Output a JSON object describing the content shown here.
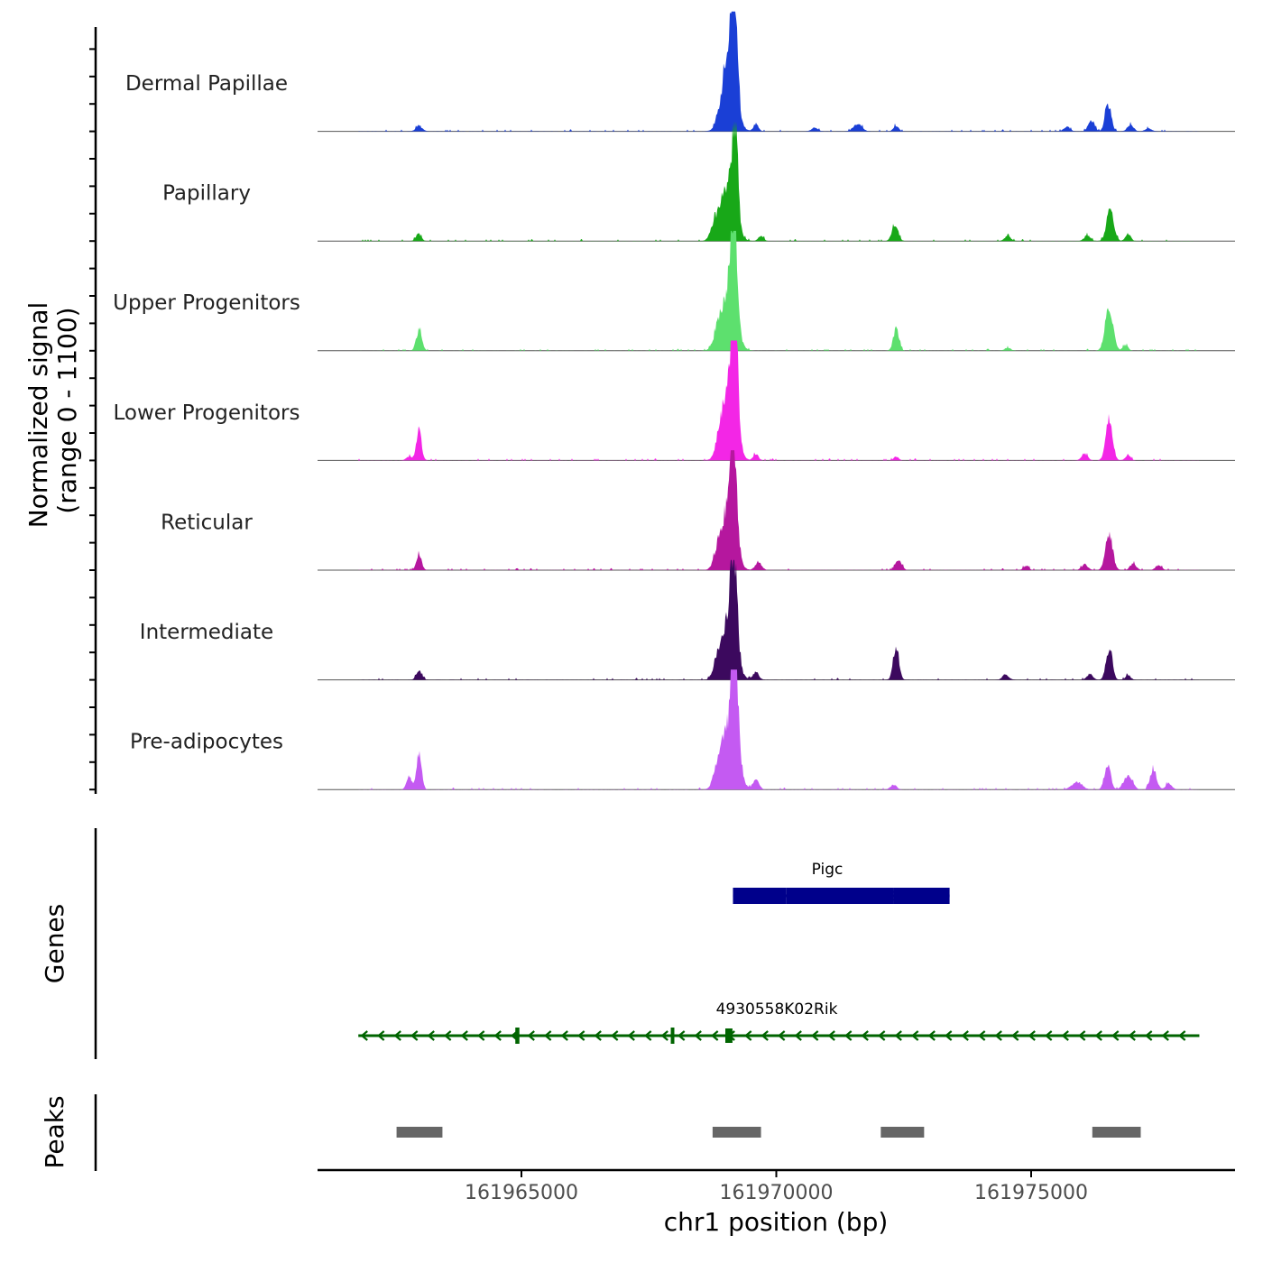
{
  "chart_data": {
    "type": "area",
    "title": "",
    "xlabel": "chr1 position (bp)",
    "ylabel_line1": "Normalized signal",
    "ylabel_line2": "(range 0 - 1100)",
    "y_range": [
      0,
      1100
    ],
    "xlim": [
      161961000,
      161979000
    ],
    "x_ticks": [
      {
        "value": 161965000,
        "label": "161965000"
      },
      {
        "value": 161970000,
        "label": "161970000"
      },
      {
        "value": 161975000,
        "label": "161975000"
      }
    ],
    "track_labels": {
      "genes": "Genes",
      "peaks": "Peaks"
    },
    "series": [
      {
        "name": "Dermal Papillae",
        "color": "#1a3fd6",
        "peaks": [
          {
            "center": 161962990,
            "height": 60,
            "width": 60
          },
          {
            "center": 161969070,
            "height": 820,
            "width": 130
          },
          {
            "center": 161969180,
            "height": 1000,
            "width": 55
          },
          {
            "center": 161969600,
            "height": 80,
            "width": 50
          },
          {
            "center": 161970750,
            "height": 40,
            "width": 60
          },
          {
            "center": 161971540,
            "height": 50,
            "width": 60
          },
          {
            "center": 161971650,
            "height": 55,
            "width": 60
          },
          {
            "center": 161972350,
            "height": 60,
            "width": 50
          },
          {
            "center": 161975700,
            "height": 50,
            "width": 60
          },
          {
            "center": 161976180,
            "height": 120,
            "width": 60
          },
          {
            "center": 161976510,
            "height": 290,
            "width": 60
          },
          {
            "center": 161976950,
            "height": 70,
            "width": 60
          },
          {
            "center": 161977300,
            "height": 30,
            "width": 60
          }
        ]
      },
      {
        "name": "Papillary",
        "color": "#18a818",
        "peaks": [
          {
            "center": 161962980,
            "height": 80,
            "width": 50
          },
          {
            "center": 161968800,
            "height": 150,
            "width": 80
          },
          {
            "center": 161969050,
            "height": 560,
            "width": 140
          },
          {
            "center": 161969190,
            "height": 980,
            "width": 55
          },
          {
            "center": 161969700,
            "height": 60,
            "width": 50
          },
          {
            "center": 161972330,
            "height": 170,
            "width": 60
          },
          {
            "center": 161974540,
            "height": 50,
            "width": 60
          },
          {
            "center": 161976100,
            "height": 60,
            "width": 60
          },
          {
            "center": 161976550,
            "height": 330,
            "width": 70
          },
          {
            "center": 161976900,
            "height": 80,
            "width": 50
          }
        ]
      },
      {
        "name": "Upper Progenitors",
        "color": "#5de06e",
        "peaks": [
          {
            "center": 161962990,
            "height": 220,
            "width": 55
          },
          {
            "center": 161968850,
            "height": 130,
            "width": 80
          },
          {
            "center": 161969060,
            "height": 600,
            "width": 140
          },
          {
            "center": 161969170,
            "height": 1000,
            "width": 60
          },
          {
            "center": 161972350,
            "height": 230,
            "width": 55
          },
          {
            "center": 161974540,
            "height": 30,
            "width": 60
          },
          {
            "center": 161976530,
            "height": 480,
            "width": 75
          },
          {
            "center": 161976850,
            "height": 60,
            "width": 50
          }
        ]
      },
      {
        "name": "Lower Progenitors",
        "color": "#f326e6",
        "peaks": [
          {
            "center": 161962990,
            "height": 320,
            "width": 50
          },
          {
            "center": 161962800,
            "height": 40,
            "width": 60
          },
          {
            "center": 161968900,
            "height": 200,
            "width": 80
          },
          {
            "center": 161969080,
            "height": 700,
            "width": 130
          },
          {
            "center": 161969180,
            "height": 1300,
            "width": 60
          },
          {
            "center": 161969600,
            "height": 70,
            "width": 50
          },
          {
            "center": 161972350,
            "height": 40,
            "width": 50
          },
          {
            "center": 161976050,
            "height": 70,
            "width": 60
          },
          {
            "center": 161976530,
            "height": 480,
            "width": 65
          },
          {
            "center": 161976900,
            "height": 60,
            "width": 50
          }
        ]
      },
      {
        "name": "Reticular",
        "color": "#b5179e",
        "peaks": [
          {
            "center": 161962990,
            "height": 180,
            "width": 50
          },
          {
            "center": 161968850,
            "height": 160,
            "width": 80
          },
          {
            "center": 161969070,
            "height": 650,
            "width": 130
          },
          {
            "center": 161969160,
            "height": 1050,
            "width": 60
          },
          {
            "center": 161969650,
            "height": 90,
            "width": 60
          },
          {
            "center": 161972400,
            "height": 110,
            "width": 60
          },
          {
            "center": 161974900,
            "height": 50,
            "width": 50
          },
          {
            "center": 161976050,
            "height": 60,
            "width": 60
          },
          {
            "center": 161976530,
            "height": 380,
            "width": 70
          },
          {
            "center": 161977000,
            "height": 70,
            "width": 60
          },
          {
            "center": 161977500,
            "height": 50,
            "width": 60
          }
        ]
      },
      {
        "name": "Intermediate",
        "color": "#3c095e",
        "peaks": [
          {
            "center": 161962990,
            "height": 100,
            "width": 50
          },
          {
            "center": 161968850,
            "height": 190,
            "width": 80
          },
          {
            "center": 161969080,
            "height": 640,
            "width": 130
          },
          {
            "center": 161969170,
            "height": 940,
            "width": 60
          },
          {
            "center": 161969600,
            "height": 80,
            "width": 60
          },
          {
            "center": 161972350,
            "height": 340,
            "width": 55
          },
          {
            "center": 161974500,
            "height": 60,
            "width": 60
          },
          {
            "center": 161976150,
            "height": 60,
            "width": 60
          },
          {
            "center": 161976530,
            "height": 330,
            "width": 60
          },
          {
            "center": 161976900,
            "height": 50,
            "width": 50
          }
        ]
      },
      {
        "name": "Pre-adipocytes",
        "color": "#c45af2",
        "peaks": [
          {
            "center": 161962800,
            "height": 140,
            "width": 50
          },
          {
            "center": 161962990,
            "height": 380,
            "width": 50
          },
          {
            "center": 161968850,
            "height": 200,
            "width": 80
          },
          {
            "center": 161969090,
            "height": 700,
            "width": 140
          },
          {
            "center": 161969190,
            "height": 1120,
            "width": 60
          },
          {
            "center": 161969600,
            "height": 100,
            "width": 60
          },
          {
            "center": 161972300,
            "height": 50,
            "width": 60
          },
          {
            "center": 161975900,
            "height": 80,
            "width": 100
          },
          {
            "center": 161976500,
            "height": 280,
            "width": 60
          },
          {
            "center": 161976900,
            "height": 160,
            "width": 80
          },
          {
            "center": 161977400,
            "height": 230,
            "width": 60
          },
          {
            "center": 161977700,
            "height": 70,
            "width": 60
          }
        ]
      }
    ],
    "genes": [
      {
        "name": "Pigc",
        "start": 161969150,
        "end": 161973400,
        "strand": "-",
        "color": "#00008b",
        "exons": [
          [
            161969150,
            161970200
          ],
          [
            161970200,
            161972300
          ],
          [
            161972300,
            161973400
          ]
        ],
        "row": 0
      },
      {
        "name": "4930558K02Rik",
        "start": 161961800,
        "end": 161978300,
        "strand": "-",
        "color": "#006400",
        "exons": [
          [
            161964880,
            161964960
          ],
          [
            161967930,
            161968000
          ],
          [
            161969000,
            161969140
          ]
        ],
        "row": 1
      }
    ],
    "peak_regions": [
      {
        "start": 161962550,
        "end": 161963450
      },
      {
        "start": 161968750,
        "end": 161969700
      },
      {
        "start": 161972050,
        "end": 161972900
      },
      {
        "start": 161976200,
        "end": 161977150
      }
    ]
  }
}
